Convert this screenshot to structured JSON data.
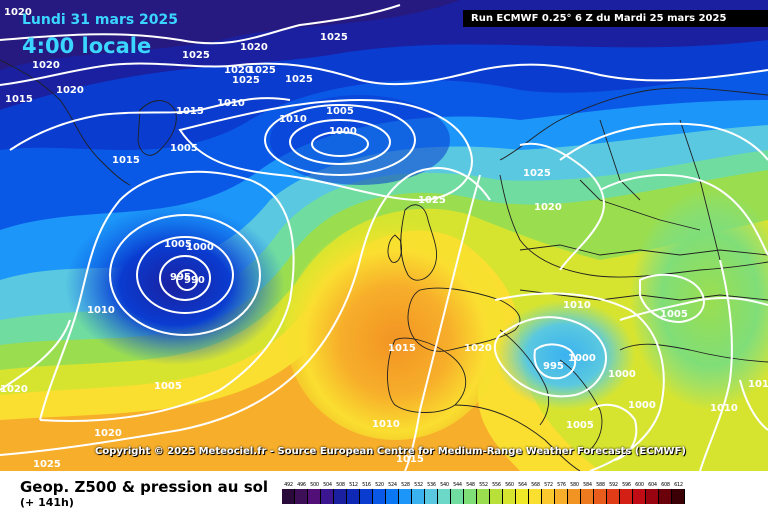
{
  "header": {
    "date_line": "Lundi 31 mars 2025",
    "time_line": "4:00 locale",
    "run_info": "Run ECMWF 0.25° 6 Z du Mardi 25 mars 2025"
  },
  "copyright": "Copyright © 2025 Meteociel.fr - Source European Centre for Medium-Range Weather Forecasts (ECMWF)",
  "footer": {
    "title": "Geop. Z500 & pression au sol",
    "subtitle": "(+ 141h)"
  },
  "legend": {
    "values": [
      "492",
      "496",
      "500",
      "504",
      "508",
      "512",
      "516",
      "520",
      "524",
      "528",
      "532",
      "536",
      "540",
      "544",
      "548",
      "552",
      "556",
      "560",
      "564",
      "568",
      "572",
      "576",
      "580",
      "584",
      "588",
      "592",
      "596",
      "600",
      "604",
      "608",
      "612"
    ],
    "colors": [
      "#2a0a3a",
      "#3d0f57",
      "#520f78",
      "#3b1690",
      "#1a20a0",
      "#0f28b6",
      "#0a3cd0",
      "#0a58e6",
      "#0a78f4",
      "#1c96f8",
      "#3ab2f0",
      "#5ac8e0",
      "#6cd8c8",
      "#70dca0",
      "#80de78",
      "#9ade50",
      "#b8e038",
      "#d6e430",
      "#eee828",
      "#fade30",
      "#fbc82e",
      "#f7ae2a",
      "#f29424",
      "#ee7a20",
      "#e85c1c",
      "#e03c18",
      "#d42014",
      "#c00c14",
      "#9a0410",
      "#6a000a",
      "#3a0005"
    ]
  },
  "isobar_labels": [
    {
      "text": "1020",
      "label_for": "top-left"
    },
    {
      "text": "1025"
    },
    {
      "text": "1020"
    },
    {
      "text": "1025"
    },
    {
      "text": "1020"
    },
    {
      "text": "1025"
    },
    {
      "text": "1025"
    },
    {
      "text": "1025"
    },
    {
      "text": "1020"
    },
    {
      "text": "1020"
    },
    {
      "text": "1015"
    },
    {
      "text": "1010"
    },
    {
      "text": "1015"
    },
    {
      "text": "1005"
    },
    {
      "text": "1010"
    },
    {
      "text": "1000"
    },
    {
      "text": "1005"
    },
    {
      "text": "1015"
    },
    {
      "text": "1025"
    },
    {
      "text": "1020"
    },
    {
      "text": "1025"
    },
    {
      "text": "1005"
    },
    {
      "text": "1000"
    },
    {
      "text": "995"
    },
    {
      "text": "990"
    },
    {
      "text": "1010"
    },
    {
      "text": "1010"
    },
    {
      "text": "1005"
    },
    {
      "text": "1015"
    },
    {
      "text": "1020"
    },
    {
      "text": "1000"
    },
    {
      "text": "995"
    },
    {
      "text": "1000"
    },
    {
      "text": "1000"
    },
    {
      "text": "1005"
    },
    {
      "text": "1010"
    },
    {
      "text": "1020"
    },
    {
      "text": "1005"
    },
    {
      "text": "1020"
    },
    {
      "text": "1010"
    },
    {
      "text": "1015"
    },
    {
      "text": "1025"
    },
    {
      "text": "1015"
    }
  ]
}
